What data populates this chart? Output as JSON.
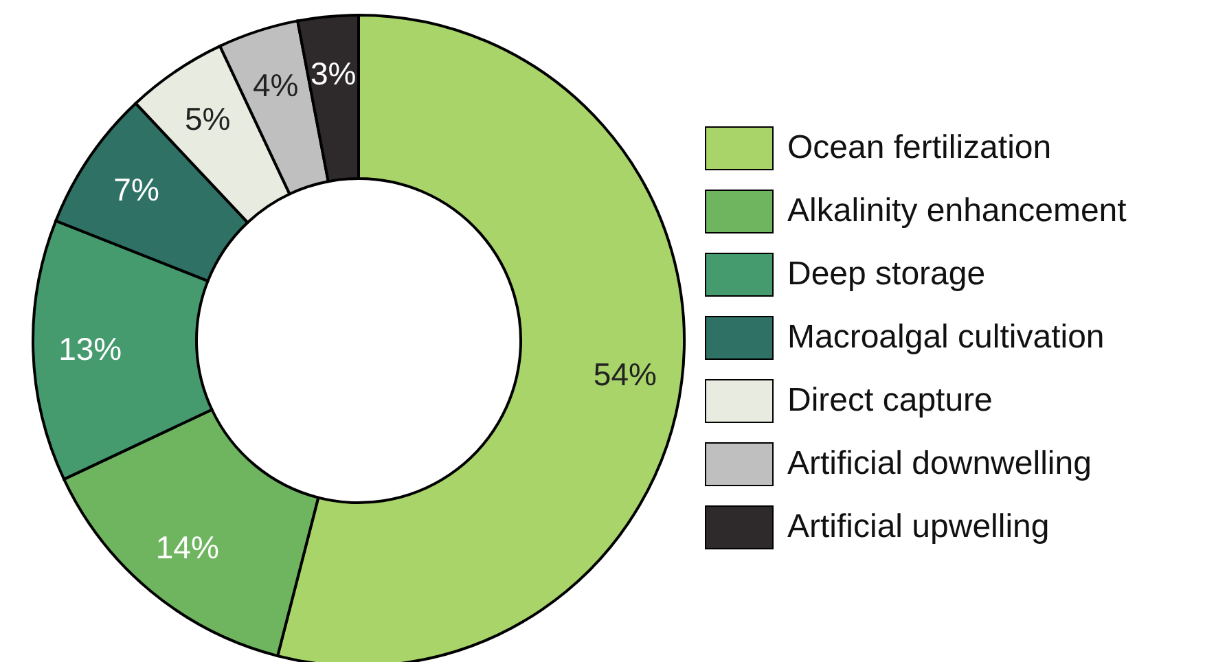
{
  "chart_data": {
    "type": "donut",
    "categories": [
      "Ocean fertilization",
      "Alkalinity enhancement",
      "Deep storage",
      "Macroalgal cultivation",
      "Direct capture",
      "Artificial downwelling",
      "Artificial upwelling"
    ],
    "values": [
      54,
      14,
      13,
      7,
      5,
      4,
      3
    ],
    "colors": [
      "#a9d46a",
      "#6fb560",
      "#459a6e",
      "#2f7265",
      "#e8ebdf",
      "#bfbfbf",
      "#2e2a2b"
    ],
    "value_labels": [
      "54%",
      "14%",
      "13%",
      "7%",
      "5%",
      "4%",
      "3%"
    ],
    "legend": "right"
  }
}
